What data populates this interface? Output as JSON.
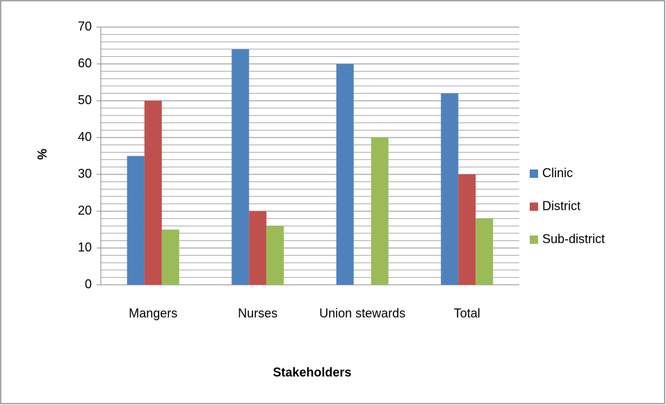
{
  "chart_data": {
    "type": "bar",
    "x_label": "Stakeholders",
    "y_label": "%",
    "categories": [
      "Mangers",
      "Nurses",
      "Union stewards",
      "Total"
    ],
    "series": [
      {
        "name": "Clinic",
        "color": "#4f81bd",
        "values": [
          35,
          64,
          60,
          52
        ]
      },
      {
        "name": "District",
        "color": "#c0504d",
        "values": [
          50,
          20,
          null,
          30
        ]
      },
      {
        "name": "Sub-district",
        "color": "#9bbb59",
        "values": [
          15,
          16,
          40,
          18
        ]
      }
    ],
    "ylim": [
      0,
      70
    ],
    "yticks": [
      0,
      10,
      20,
      30,
      40,
      50,
      60,
      70
    ],
    "y_minor_ticks": [
      2,
      4,
      6,
      8,
      12,
      14,
      16,
      18,
      22,
      24,
      26,
      28,
      32,
      34,
      36,
      38,
      42,
      44,
      46,
      48,
      52,
      54,
      56,
      58,
      62,
      64,
      66,
      68
    ],
    "grid": true,
    "legend": "right"
  }
}
